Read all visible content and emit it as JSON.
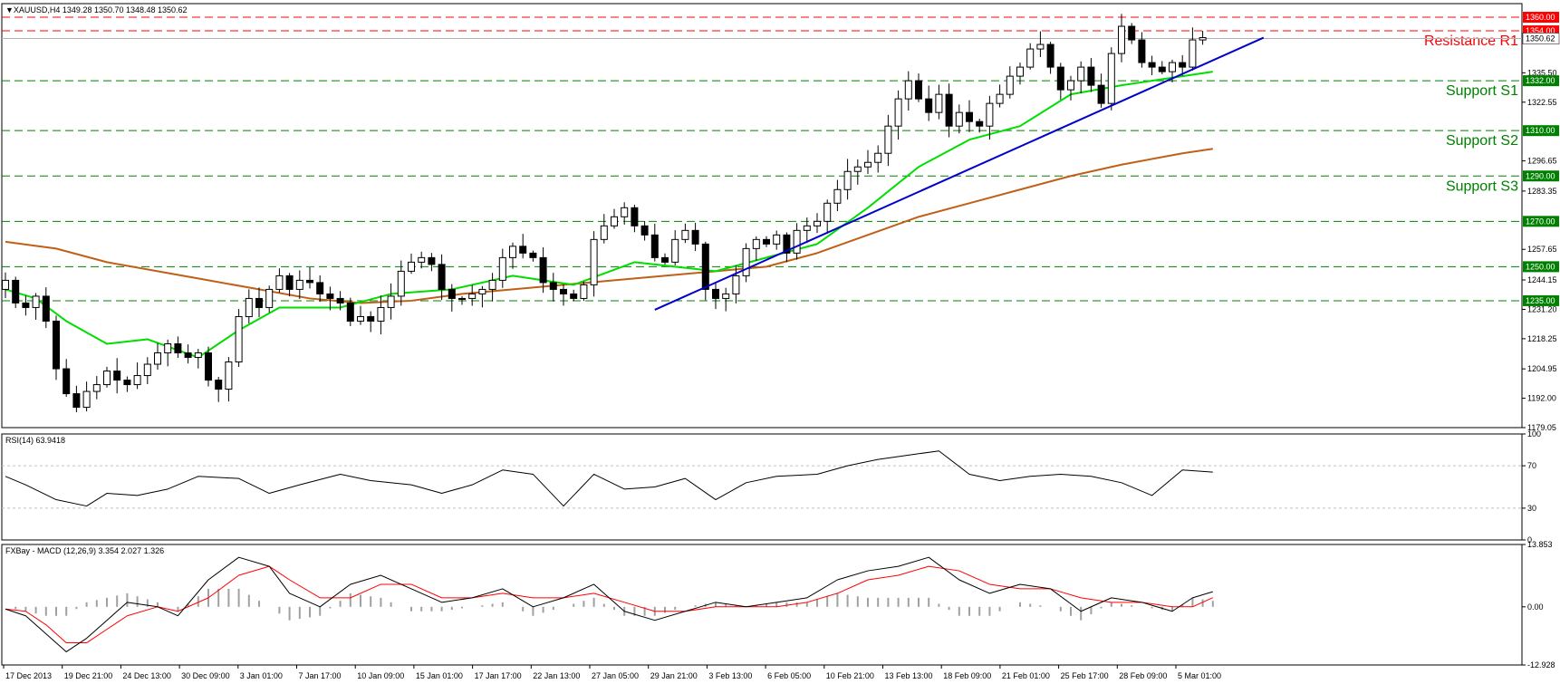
{
  "colors": {
    "bg": "#ffffff",
    "frame": "#000000",
    "grid": "#c0c0c0",
    "bull": "#ffffff",
    "bear": "#000000",
    "resistance": "#ff0000",
    "support": "#008000",
    "ema_fast": "#00dd00",
    "ema_slow": "#c06018",
    "trend": "#0000cc",
    "rsi": "#000000",
    "macd": "#000000",
    "signal": "#ff0000",
    "hist": "#a0a0a0"
  },
  "chart_data": [
    {
      "type": "candlestick",
      "title": "▼XAUUSD,H4  1349.28 1350.70 1348.48 1350.62",
      "ylim": [
        1179.05,
        1366.0
      ],
      "y_tick_labels": [
        "1335.50",
        "1322.55",
        "1296.65",
        "1283.35",
        "1257.65",
        "1244.15",
        "1231.20",
        "1218.25",
        "1204.95",
        "1192.00",
        "1179.05"
      ],
      "price_marker": {
        "value": 1350.62,
        "label": "1350.62"
      },
      "levels": [
        {
          "value": 1360.0,
          "label": "1360.00",
          "kind": "resistance",
          "name": ""
        },
        {
          "value": 1354.0,
          "label": "1354.00",
          "kind": "resistance",
          "name": "Resistance R1"
        },
        {
          "value": 1332.0,
          "label": "1332.00",
          "kind": "support",
          "name": "Support S1"
        },
        {
          "value": 1310.0,
          "label": "1310.00",
          "kind": "support",
          "name": "Support S2"
        },
        {
          "value": 1290.0,
          "label": "1290.00",
          "kind": "support",
          "name": "Support S3"
        },
        {
          "value": 1270.0,
          "label": "1270.00",
          "kind": "support",
          "name": ""
        },
        {
          "value": 1250.0,
          "label": "1250.00",
          "kind": "support",
          "name": ""
        },
        {
          "value": 1235.0,
          "label": "1235.00",
          "kind": "support",
          "name": ""
        }
      ],
      "closes": [
        1244,
        1234,
        1232,
        1237,
        1226,
        1205,
        1194,
        1188,
        1195,
        1198,
        1204,
        1200,
        1198,
        1202,
        1207,
        1212,
        1216,
        1212,
        1210,
        1212,
        1200,
        1196,
        1208,
        1228,
        1236,
        1232,
        1240,
        1246,
        1240,
        1244,
        1243,
        1238,
        1236,
        1234,
        1226,
        1228,
        1226,
        1232,
        1237,
        1248,
        1252,
        1254,
        1251,
        1240,
        1236,
        1236,
        1238,
        1240,
        1244,
        1254,
        1259,
        1256,
        1254,
        1243,
        1240,
        1238,
        1236,
        1242,
        1262,
        1268,
        1272,
        1276,
        1268,
        1264,
        1254,
        1252,
        1262,
        1266,
        1260,
        1240,
        1236,
        1238,
        1246,
        1258,
        1262,
        1260,
        1264,
        1256,
        1266,
        1268,
        1270,
        1278,
        1284,
        1292,
        1294,
        1296,
        1300,
        1312,
        1324,
        1332,
        1324,
        1318,
        1326,
        1312,
        1318,
        1314,
        1312,
        1322,
        1326,
        1334,
        1338,
        1346,
        1348,
        1338,
        1328,
        1332,
        1338,
        1330,
        1322,
        1344,
        1356,
        1350,
        1340,
        1338,
        1336,
        1340,
        1338,
        1350,
        1351
      ],
      "candle_count": 119,
      "candle_first": {
        "open": 1240,
        "high": 1248,
        "low": 1236
      },
      "ema_fast": {
        "x": [
          0,
          3,
          6,
          10,
          14,
          19,
          23,
          27,
          33,
          38,
          44,
          50,
          56,
          62,
          66,
          70,
          75,
          80,
          85,
          90,
          95,
          100,
          105,
          110,
          113,
          116,
          119
        ],
        "y": [
          1240,
          1236,
          1226,
          1216,
          1218,
          1210,
          1222,
          1232,
          1232,
          1238,
          1240,
          1246,
          1242,
          1252,
          1250,
          1248,
          1254,
          1260,
          1276,
          1294,
          1306,
          1312,
          1326,
          1330,
          1332,
          1334,
          1336
        ]
      },
      "ema_slow": {
        "x": [
          0,
          5,
          10,
          15,
          20,
          25,
          30,
          35,
          40,
          45,
          50,
          55,
          60,
          65,
          70,
          75,
          80,
          85,
          90,
          95,
          100,
          105,
          110,
          116,
          119
        ],
        "y": [
          1261,
          1258,
          1252,
          1248,
          1244,
          1240,
          1236,
          1234,
          1235,
          1238,
          1240,
          1242,
          1244,
          1246,
          1248,
          1250,
          1256,
          1264,
          1272,
          1278,
          1284,
          1290,
          1295,
          1300,
          1302
        ]
      },
      "trendline": {
        "x": [
          64,
          124
        ],
        "y": [
          1231,
          1351
        ]
      }
    },
    {
      "type": "line",
      "title": "RSI(14) 63.9418",
      "ylim": [
        0,
        100
      ],
      "y_tick_labels": [
        "100",
        "70",
        "30",
        "0"
      ],
      "levels": [
        70,
        30
      ],
      "x": [
        0,
        2,
        5,
        8,
        10,
        13,
        16,
        19,
        23,
        26,
        29,
        33,
        36,
        40,
        43,
        46,
        49,
        52,
        55,
        58,
        61,
        64,
        67,
        70,
        73,
        76,
        80,
        83,
        86,
        89,
        92,
        95,
        98,
        101,
        104,
        107,
        110,
        113,
        116,
        119
      ],
      "y": [
        60,
        52,
        38,
        32,
        44,
        42,
        48,
        60,
        58,
        44,
        52,
        62,
        56,
        52,
        44,
        52,
        66,
        62,
        32,
        62,
        48,
        50,
        58,
        38,
        54,
        60,
        62,
        70,
        76,
        80,
        84,
        62,
        56,
        60,
        62,
        60,
        54,
        42,
        66,
        64
      ]
    },
    {
      "type": "macd",
      "title": "FXBay - MACD (12,26,9) 3.354 2.027 1.326",
      "ylim": [
        -12.928,
        13.853
      ],
      "y_tick_labels": [
        "13.853",
        "0.00",
        "-12.928"
      ],
      "x": [
        0,
        2,
        4,
        6,
        8,
        10,
        12,
        15,
        17,
        20,
        23,
        26,
        28,
        31,
        34,
        37,
        40,
        43,
        46,
        49,
        52,
        55,
        58,
        61,
        64,
        67,
        70,
        73,
        76,
        79,
        82,
        85,
        88,
        91,
        94,
        97,
        100,
        103,
        106,
        109,
        112,
        115,
        117,
        119
      ],
      "macd": [
        -0.5,
        -2,
        -6,
        -10,
        -7,
        -3,
        1,
        0,
        -2,
        6,
        11,
        9,
        3,
        0,
        5,
        7,
        4,
        1,
        2,
        4,
        0,
        2,
        5,
        -1,
        -3,
        -1,
        1,
        0,
        1,
        2,
        6,
        8,
        9,
        11,
        6,
        3,
        5,
        4,
        -1,
        2,
        1,
        -1,
        2,
        3.354
      ],
      "signal": [
        -0.5,
        -1,
        -4,
        -8,
        -8,
        -5,
        -2,
        0,
        -1,
        2,
        7,
        9,
        6,
        2,
        2,
        5,
        5,
        2,
        2,
        3,
        2,
        2,
        3,
        1,
        -1,
        -1,
        0,
        0,
        0,
        1,
        3,
        6,
        7,
        9,
        8,
        5,
        4,
        4,
        2,
        1,
        1,
        0,
        0,
        2.027
      ],
      "hist": [
        0,
        -1,
        -2,
        -2,
        1,
        2,
        3,
        1,
        -1,
        4,
        4,
        0,
        -3,
        -2,
        3,
        2,
        -1,
        -1,
        0,
        1,
        -2,
        0,
        2,
        -2,
        -2,
        0,
        1,
        0,
        1,
        1,
        3,
        2,
        2,
        2,
        -2,
        -2,
        1,
        0,
        -3,
        1,
        0,
        -1,
        2,
        1.326
      ]
    }
  ],
  "x_axis": {
    "labels": [
      "17 Dec 2013",
      "19 Dec 21:00",
      "24 Dec 13:00",
      "30 Dec 09:00",
      "3 Jan 01:00",
      "7 Jan 17:00",
      "10 Jan 09:00",
      "15 Jan 01:00",
      "17 Jan 17:00",
      "22 Jan 13:00",
      "27 Jan 05:00",
      "29 Jan 21:00",
      "3 Feb 13:00",
      "6 Feb 05:00",
      "10 Feb 21:00",
      "13 Feb 13:00",
      "18 Feb 09:00",
      "21 Feb 01:00",
      "25 Feb 17:00",
      "28 Feb 09:00",
      "5 Mar 01:00"
    ]
  }
}
